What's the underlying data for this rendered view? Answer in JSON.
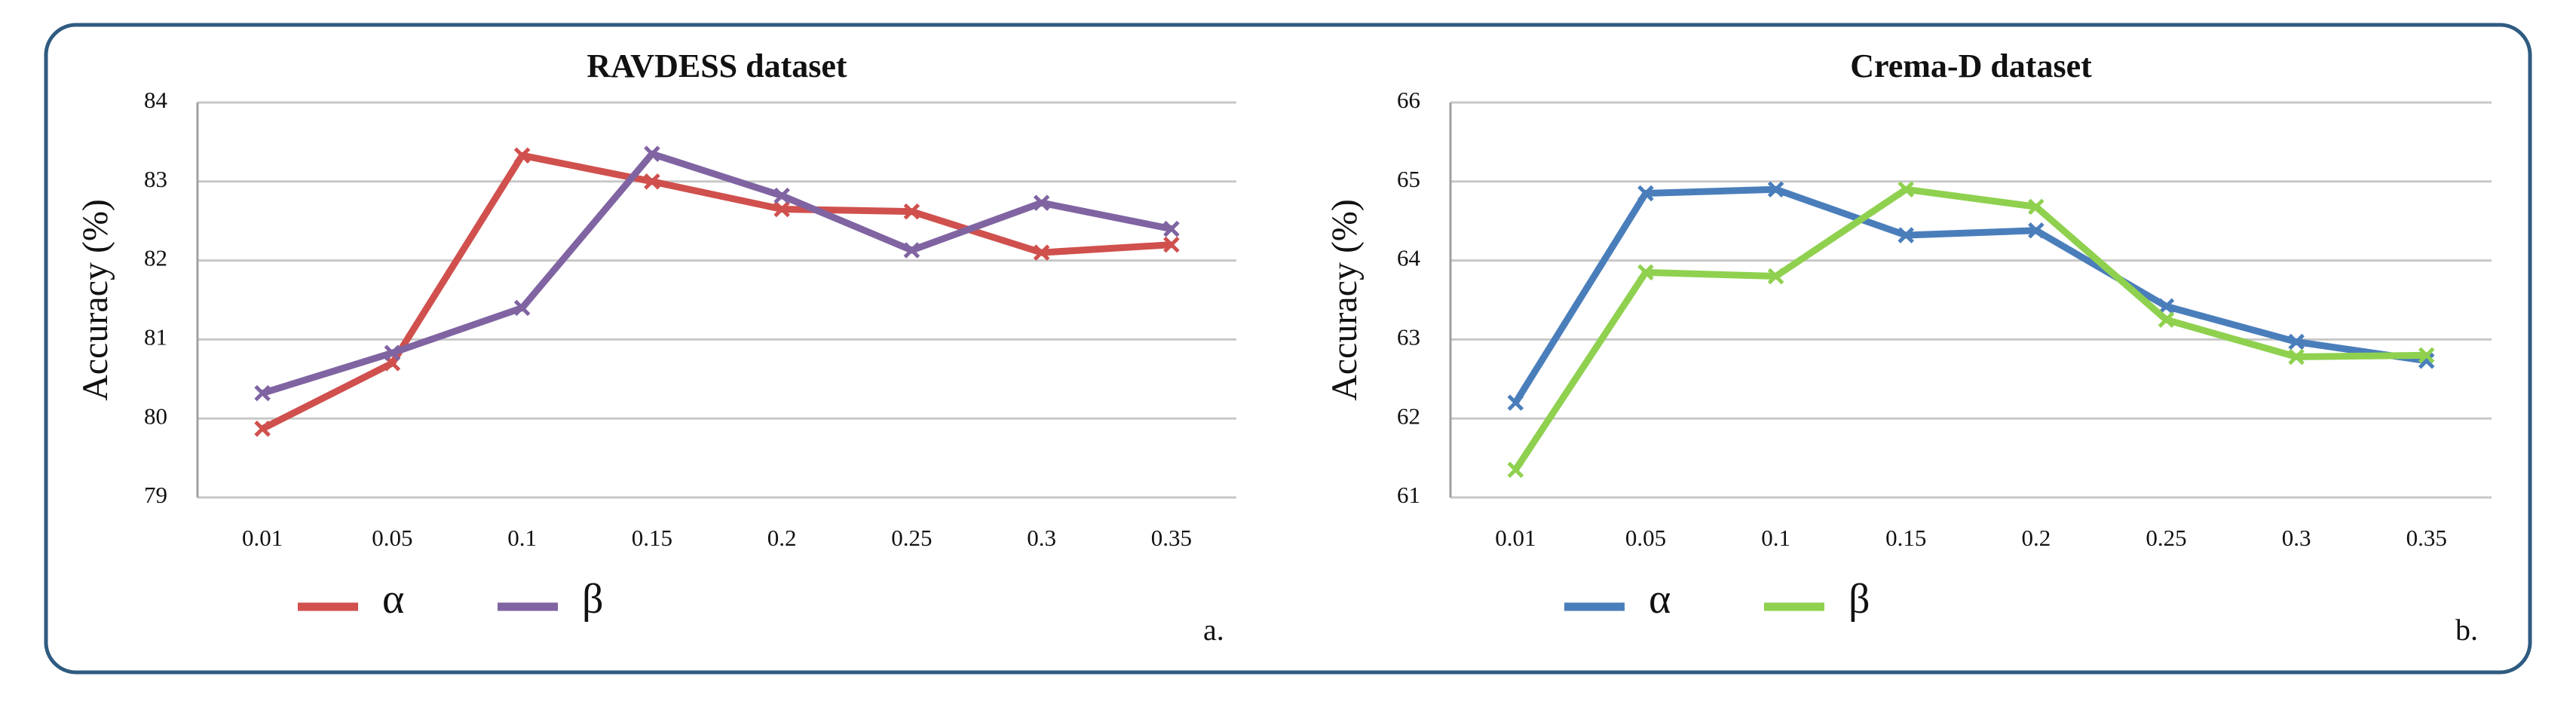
{
  "chart_data": [
    {
      "type": "line",
      "title": "RAVDESS dataset",
      "y_label": "Accuracy (%)",
      "annotation": "a.",
      "categories": [
        "0.01",
        "0.05",
        "0.1",
        "0.15",
        "0.2",
        "0.25",
        "0.3",
        "0.35"
      ],
      "series": [
        {
          "name": "α",
          "color": "#d0504d",
          "values": [
            79.87,
            80.7,
            83.33,
            83.0,
            82.65,
            82.62,
            82.1,
            82.2
          ]
        },
        {
          "name": "β",
          "color": "#8064a2",
          "values": [
            80.32,
            80.83,
            81.4,
            83.35,
            82.82,
            82.13,
            82.73,
            82.4
          ]
        }
      ],
      "ylim": [
        79,
        84
      ],
      "yticks": [
        79,
        80,
        81,
        82,
        83,
        84
      ],
      "grid": true
    },
    {
      "type": "line",
      "title": "Crema-D dataset",
      "y_label": "Accuracy (%)",
      "annotation": "b.",
      "categories": [
        "0.01",
        "0.05",
        "0.1",
        "0.15",
        "0.2",
        "0.25",
        "0.3",
        "0.35"
      ],
      "series": [
        {
          "name": "α",
          "color": "#4a7ebb",
          "values": [
            62.2,
            64.85,
            64.9,
            64.32,
            64.38,
            63.42,
            62.97,
            62.73
          ]
        },
        {
          "name": "β",
          "color": "#8fd14f",
          "values": [
            61.35,
            63.85,
            63.8,
            64.9,
            64.68,
            63.25,
            62.78,
            62.8
          ]
        }
      ],
      "ylim": [
        61,
        66
      ],
      "yticks": [
        61,
        62,
        63,
        64,
        65,
        66
      ],
      "grid": true
    }
  ]
}
